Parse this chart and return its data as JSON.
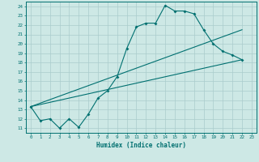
{
  "xlabel": "Humidex (Indice chaleur)",
  "bg_color": "#cde8e5",
  "line_color": "#007070",
  "grid_color": "#aacccc",
  "xlim": [
    -0.5,
    23.5
  ],
  "ylim": [
    10.5,
    24.5
  ],
  "xticks": [
    0,
    1,
    2,
    3,
    4,
    5,
    6,
    7,
    8,
    9,
    10,
    11,
    12,
    13,
    14,
    15,
    16,
    17,
    18,
    19,
    20,
    21,
    22,
    23
  ],
  "yticks": [
    11,
    12,
    13,
    14,
    15,
    16,
    17,
    18,
    19,
    20,
    21,
    22,
    23,
    24
  ],
  "series1_x": [
    0,
    1,
    2,
    3,
    4,
    5,
    6,
    7,
    8,
    9,
    10,
    11,
    12,
    13,
    14,
    15,
    16,
    17,
    18,
    19,
    20,
    21,
    22
  ],
  "series1_y": [
    13.3,
    11.8,
    12.0,
    11.0,
    12.0,
    11.1,
    12.5,
    14.2,
    15.0,
    16.5,
    19.5,
    21.8,
    22.2,
    22.2,
    24.1,
    23.5,
    23.5,
    23.2,
    21.5,
    20.0,
    19.2,
    18.8,
    18.3
  ],
  "series2_x": [
    0,
    22
  ],
  "series2_y": [
    13.3,
    18.3
  ],
  "series3_x": [
    0,
    22
  ],
  "series3_y": [
    13.3,
    21.5
  ]
}
